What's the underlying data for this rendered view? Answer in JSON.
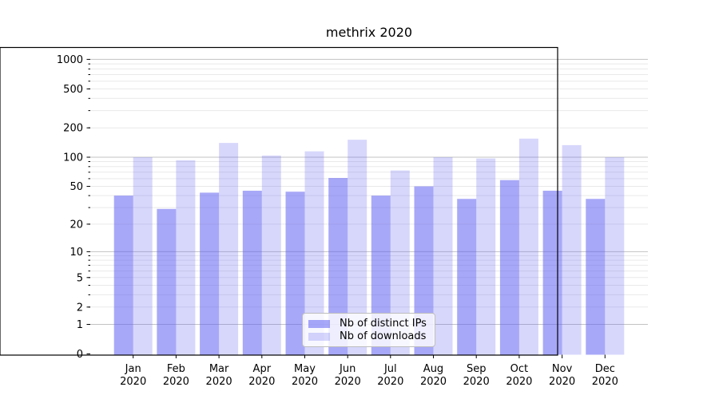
{
  "chart_data": {
    "type": "bar",
    "title": "methrix 2020",
    "x": {
      "months": [
        "Jan",
        "Feb",
        "Mar",
        "Apr",
        "May",
        "Jun",
        "Jul",
        "Aug",
        "Sep",
        "Oct",
        "Nov",
        "Dec"
      ],
      "year": "2020"
    },
    "series": [
      {
        "name": "Nb of distinct IPs",
        "color": "rgba(97,97,243,0.55)",
        "values": [
          40,
          29,
          43,
          45,
          44,
          61,
          40,
          50,
          37,
          58,
          45,
          37
        ]
      },
      {
        "name": "Nb of downloads",
        "color": "rgba(97,97,243,0.25)",
        "values": [
          100,
          93,
          140,
          104,
          115,
          151,
          73,
          100,
          97,
          155,
          133,
          100
        ]
      }
    ],
    "y_axis": {
      "scale": "log1p",
      "ticks": [
        1000,
        500,
        200,
        100,
        50,
        20,
        10,
        5,
        2,
        1,
        0
      ],
      "major_grid": [
        1,
        10,
        100,
        1000
      ],
      "minor_grid": [
        2,
        3,
        4,
        5,
        6,
        7,
        8,
        9,
        20,
        30,
        40,
        50,
        60,
        70,
        80,
        90,
        200,
        300,
        400,
        500,
        600,
        700,
        800,
        900
      ],
      "ylim": [
        0,
        1335
      ]
    },
    "legend": {
      "position": "lower-center",
      "entries": [
        "Nb of distinct IPs",
        "Nb of downloads"
      ]
    },
    "style": {
      "grid_major_color": "#c3c3c3",
      "grid_minor_color": "#e9e9e9",
      "spine_color": "#000000",
      "text_color": "#000000",
      "background": "#ffffff"
    }
  }
}
